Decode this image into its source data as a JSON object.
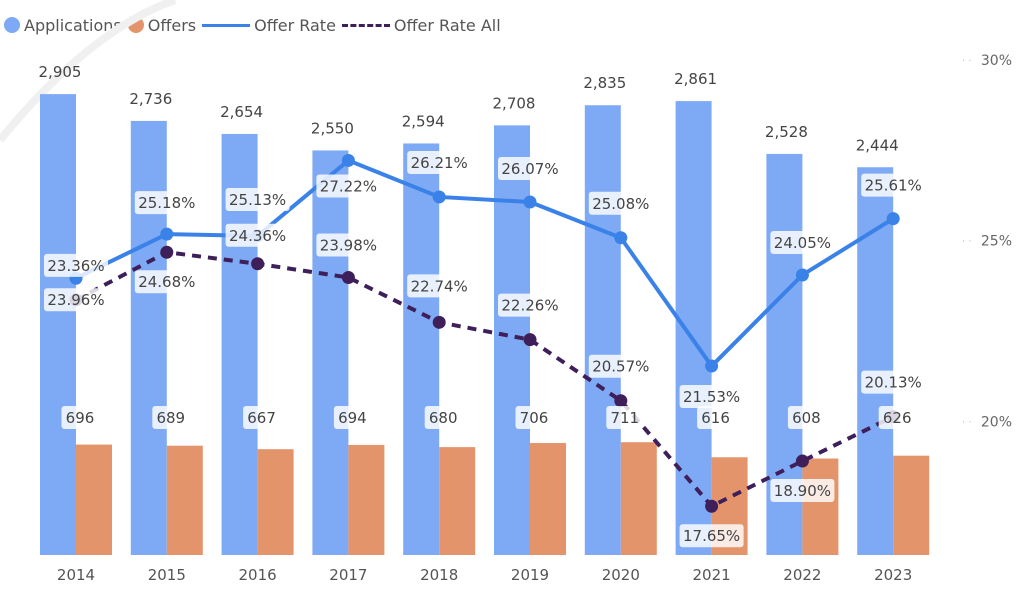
{
  "chart_data": {
    "type": "bar",
    "categories": [
      "2014",
      "2015",
      "2016",
      "2017",
      "2018",
      "2019",
      "2020",
      "2021",
      "2022",
      "2023"
    ],
    "series": [
      {
        "name": "Applications",
        "kind": "bar",
        "axis": "left",
        "color": "#7ea9f5",
        "values": [
          2905,
          2736,
          2654,
          2550,
          2594,
          2708,
          2835,
          2861,
          2528,
          2444
        ],
        "labels": [
          "2,905",
          "2,736",
          "2,654",
          "2,550",
          "2,594",
          "2,708",
          "2,835",
          "2,861",
          "2,528",
          "2,444"
        ]
      },
      {
        "name": "Offers",
        "kind": "bar",
        "axis": "left",
        "color": "#e4946a",
        "values": [
          696,
          689,
          667,
          694,
          680,
          706,
          711,
          616,
          608,
          626
        ],
        "labels": [
          "696",
          "689",
          "667",
          "694",
          "680",
          "706",
          "711",
          "616",
          "608",
          "626"
        ]
      },
      {
        "name": "Offer Rate",
        "kind": "line",
        "axis": "right",
        "color": "#3b82e8",
        "values": [
          23.96,
          25.18,
          25.13,
          27.22,
          26.21,
          26.07,
          25.08,
          21.53,
          24.05,
          25.61
        ],
        "labels": [
          "23.96%",
          "25.18%",
          "25.13%",
          "27.22%",
          "26.21%",
          "26.07%",
          "25.08%",
          "21.53%",
          "24.05%",
          "25.61%"
        ]
      },
      {
        "name": "Offer Rate All",
        "kind": "line",
        "axis": "right",
        "color": "#3e1f5a",
        "dashed": true,
        "values": [
          23.36,
          24.68,
          24.36,
          23.98,
          22.74,
          22.26,
          20.57,
          17.65,
          18.9,
          20.13
        ],
        "labels": [
          "23.36%",
          "24.68%",
          "24.36%",
          "23.98%",
          "22.74%",
          "22.26%",
          "20.57%",
          "17.65%",
          "18.90%",
          "20.13%"
        ]
      }
    ],
    "y_right_ticks": [
      "30%",
      "25%",
      "20%"
    ],
    "y_right_tick_values": [
      30,
      25,
      20
    ],
    "y_right_range": [
      16.3,
      30
    ],
    "y_left_range": [
      0,
      3120
    ],
    "legend_position": "top-left",
    "grid": false
  }
}
